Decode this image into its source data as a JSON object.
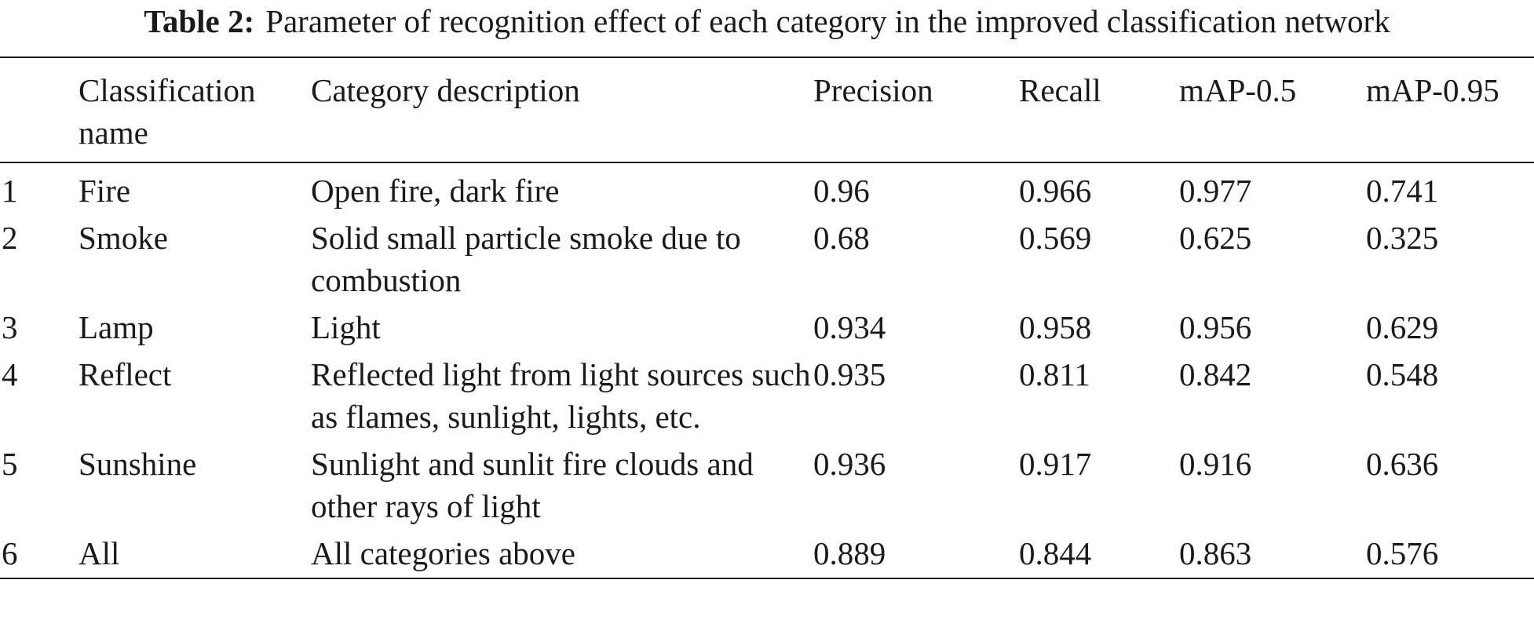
{
  "caption": {
    "label": "Table 2:",
    "text": "Parameter of recognition effect of each category in the improved classification network"
  },
  "table": {
    "headers": [
      "",
      "Classification name",
      "Category description",
      "Precision",
      "Recall",
      "mAP-0.5",
      "mAP-0.95"
    ],
    "rows": [
      [
        "1",
        "Fire",
        "Open fire, dark fire",
        "0.96",
        "0.966",
        "0.977",
        "0.741"
      ],
      [
        "2",
        "Smoke",
        "Solid small particle smoke due to combustion",
        "0.68",
        "0.569",
        "0.625",
        "0.325"
      ],
      [
        "3",
        "Lamp",
        "Light",
        "0.934",
        "0.958",
        "0.956",
        "0.629"
      ],
      [
        "4",
        "Reflect",
        "Reflected light from light sources such as flames, sunlight, lights, etc.",
        "0.935",
        "0.811",
        "0.842",
        "0.548"
      ],
      [
        "5",
        "Sunshine",
        "Sunlight and sunlit fire clouds and other rays of light",
        "0.936",
        "0.917",
        "0.916",
        "0.636"
      ],
      [
        "6",
        "All",
        "All categories above",
        "0.889",
        "0.844",
        "0.863",
        "0.576"
      ]
    ]
  }
}
